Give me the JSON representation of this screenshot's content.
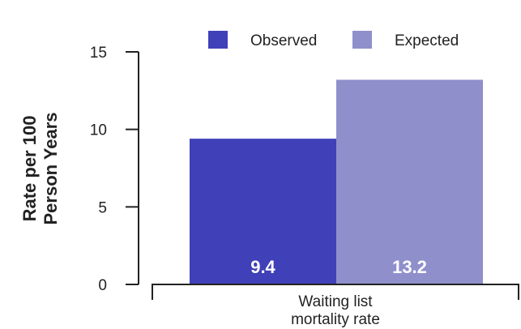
{
  "chart_data": {
    "type": "bar",
    "categories": [
      "Waiting list mortality rate"
    ],
    "category_label_lines": [
      "Waiting list",
      "mortality rate"
    ],
    "series": [
      {
        "name": "Observed",
        "values": [
          9.4
        ],
        "color": "#4040b8"
      },
      {
        "name": "Expected",
        "values": [
          13.2
        ],
        "color": "#8f8fcc"
      }
    ],
    "data_labels": [
      "9.4",
      "13.2"
    ],
    "ylabel_lines": [
      "Rate per 100",
      "Person Years"
    ],
    "ylim": [
      0,
      15
    ],
    "yticks": [
      0,
      5,
      10,
      15
    ],
    "ytick_labels": [
      "0",
      "5",
      "10",
      "15"
    ],
    "legend_position": "top",
    "grid": false
  }
}
